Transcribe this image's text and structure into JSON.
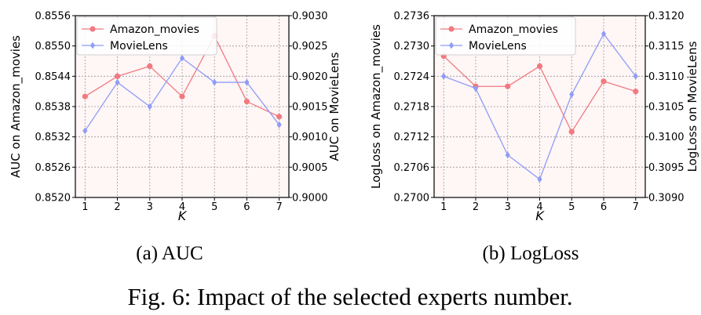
{
  "chart_data": [
    {
      "type": "line",
      "subcaption": "(a) AUC",
      "xlabel": "K",
      "ylabel_left": "AUC on Amazon_movies",
      "ylabel_right": "AUC on MovieLens",
      "x": [
        1,
        2,
        3,
        4,
        5,
        6,
        7
      ],
      "x_tick_labels": [
        "1",
        "2",
        "3",
        "4",
        "5",
        "6",
        "7"
      ],
      "ylim_left": [
        0.852,
        0.8556
      ],
      "ylim_right": [
        0.9,
        0.903
      ],
      "left_ticks": [
        "0.8520",
        "0.8526",
        "0.8532",
        "0.8538",
        "0.8544",
        "0.8550",
        "0.8556"
      ],
      "right_ticks": [
        "0.9000",
        "0.9005",
        "0.9010",
        "0.9015",
        "0.9020",
        "0.9025",
        "0.9030"
      ],
      "grid": true,
      "legend_position": "top-left",
      "series": [
        {
          "name": "Amazon_movies",
          "axis": "left",
          "color": "#f07a80",
          "marker": "circle",
          "values": [
            0.854,
            0.8544,
            0.8546,
            0.854,
            0.8552,
            0.8539,
            0.8536
          ]
        },
        {
          "name": "MovieLens",
          "axis": "right",
          "color": "#8f9cf7",
          "marker": "diamond",
          "values": [
            0.9011,
            0.9019,
            0.9015,
            0.9023,
            0.9019,
            0.9019,
            0.9012
          ]
        }
      ]
    },
    {
      "type": "line",
      "subcaption": "(b) LogLoss",
      "xlabel": "K",
      "ylabel_left": "LogLoss on Amazon_movies",
      "ylabel_right": "LogLoss on MovieLens",
      "x": [
        1,
        2,
        3,
        4,
        5,
        6,
        7
      ],
      "x_tick_labels": [
        "1",
        "2",
        "3",
        "4",
        "5",
        "6",
        "7"
      ],
      "ylim_left": [
        0.27,
        0.2736
      ],
      "ylim_right": [
        0.309,
        0.312
      ],
      "left_ticks": [
        "0.2700",
        "0.2706",
        "0.2712",
        "0.2718",
        "0.2724",
        "0.2730",
        "0.2736"
      ],
      "right_ticks": [
        "0.3090",
        "0.3095",
        "0.3100",
        "0.3105",
        "0.3110",
        "0.3115",
        "0.3120"
      ],
      "grid": true,
      "legend_position": "top-left",
      "series": [
        {
          "name": "Amazon_movies",
          "axis": "left",
          "color": "#f07a80",
          "marker": "circle",
          "values": [
            0.2728,
            0.2722,
            0.2722,
            0.2726,
            0.2713,
            0.2723,
            0.2721
          ]
        },
        {
          "name": "MovieLens",
          "axis": "right",
          "color": "#8f9cf7",
          "marker": "diamond",
          "values": [
            0.311,
            0.3108,
            0.3097,
            0.3093,
            0.3107,
            0.3117,
            0.311
          ]
        }
      ]
    }
  ],
  "caption": "Fig. 6: Impact of the selected experts number."
}
